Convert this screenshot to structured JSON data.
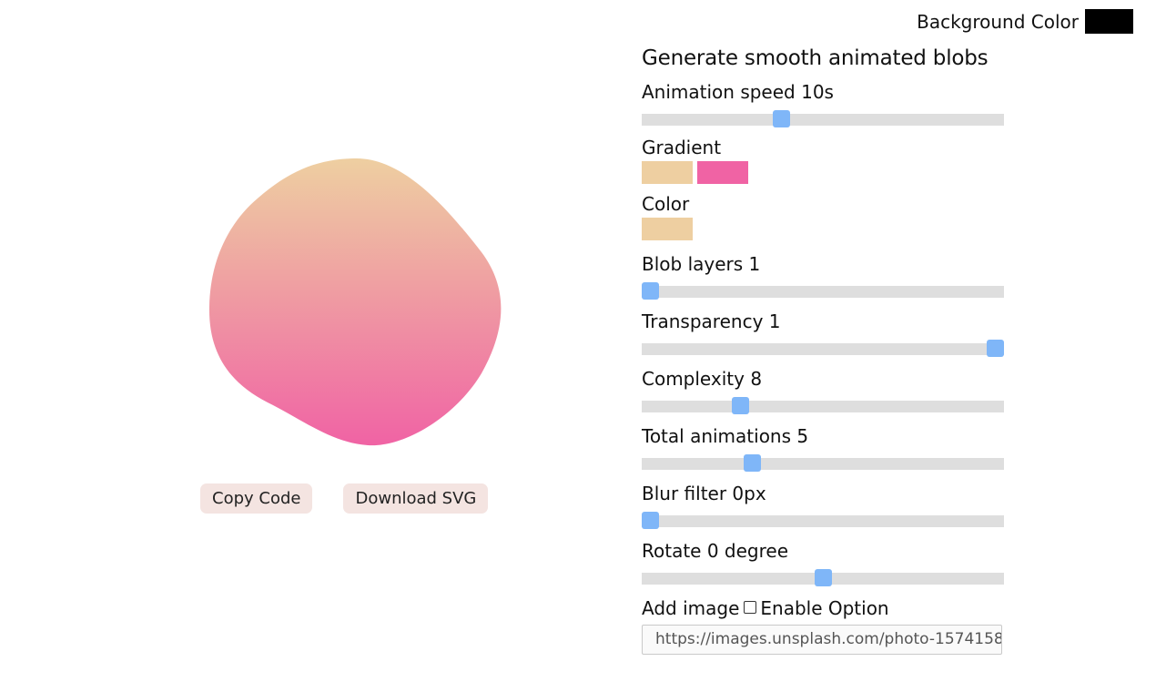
{
  "background": {
    "label": "Background Color",
    "color": "#000000"
  },
  "blob": {
    "gradient_start": "#eecfa1",
    "gradient_end": "#f063a4"
  },
  "actions": {
    "copy_label": "Copy Code",
    "download_label": "Download SVG"
  },
  "panel": {
    "title": "Generate smooth animated blobs",
    "animation_speed": {
      "label": "Animation speed 10s",
      "fraction": 0.38
    },
    "gradient": {
      "label": "Gradient",
      "colors": [
        "#eecfa1",
        "#f063a4"
      ]
    },
    "color": {
      "label": "Color",
      "value": "#eecfa1"
    },
    "blob_layers": {
      "label": "Blob layers 1",
      "fraction": 0.0
    },
    "transparency": {
      "label": "Transparency 1",
      "fraction": 1.0
    },
    "complexity": {
      "label": "Complexity 8",
      "fraction": 0.26
    },
    "total_animations": {
      "label": "Total animations 5",
      "fraction": 0.295
    },
    "blur_filter": {
      "label": "Blur filter 0px",
      "fraction": 0.0
    },
    "rotate": {
      "label": "Rotate 0 degree",
      "fraction": 0.5
    },
    "add_image": {
      "label": "Add image",
      "checkbox_label": "Enable Option",
      "checked": false,
      "url_value": "https://images.unsplash.com/photo-1574158"
    }
  },
  "colors": {
    "slider_track": "#dedede",
    "slider_thumb": "#7fb6f8",
    "button_bg": "#f4e4e1"
  }
}
